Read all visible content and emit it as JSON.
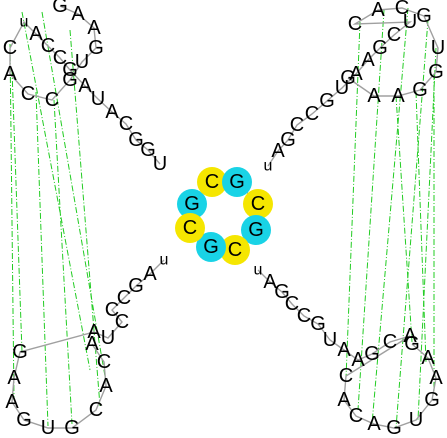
{
  "figure": {
    "type": "RNA secondary structure diagram",
    "colors": {
      "background": "#ffffff",
      "backbone": "#a0a0a0",
      "text": "#000000",
      "pseudoknot_line": "#22cc22",
      "highlight_yellow": "#f5e600",
      "highlight_cyan": "#19d3e6"
    }
  },
  "core": [
    {
      "label": "G",
      "highlight": "cyan"
    },
    {
      "label": "C",
      "highlight": "yellow"
    },
    {
      "label": "G",
      "highlight": "cyan"
    },
    {
      "label": "C",
      "highlight": "yellow"
    },
    {
      "label": "G",
      "highlight": "cyan"
    },
    {
      "label": "C",
      "highlight": "yellow"
    },
    {
      "label": "G",
      "highlight": "cyan"
    },
    {
      "label": "C",
      "highlight": "yellow"
    }
  ],
  "arms": {
    "top_left_stem": [
      "U",
      "G",
      "G",
      "C",
      "A",
      "U",
      "A",
      "G",
      "C",
      "C",
      "A",
      "u"
    ],
    "top_left_loop": [
      "C",
      "A",
      "C",
      "C",
      "G",
      "U",
      "G",
      "A",
      "A",
      "G"
    ],
    "top_right_stem": [
      "u",
      "A",
      "G",
      "C",
      "C",
      "G",
      "U",
      "A",
      "A",
      "G",
      "C",
      "U"
    ],
    "top_right_loop": [
      "C",
      "A",
      "C",
      "G",
      "U",
      "G",
      "G",
      "A",
      "A",
      "G"
    ],
    "bottom_left_stem": [
      "u",
      "A",
      "G",
      "C",
      "C",
      "C",
      "U",
      "A"
    ],
    "bottom_left_loop": [
      "G",
      "A",
      "A",
      "G",
      "U",
      "G",
      "C",
      "A",
      "C",
      "A"
    ],
    "bottom_right_stem": [
      "u",
      "A",
      "G",
      "C",
      "C",
      "G",
      "U",
      "A",
      "A",
      "G",
      "C",
      "A"
    ],
    "bottom_right_loop": [
      "C",
      "A",
      "C",
      "A",
      "G",
      "U",
      "G",
      "A",
      "A",
      "G"
    ]
  }
}
